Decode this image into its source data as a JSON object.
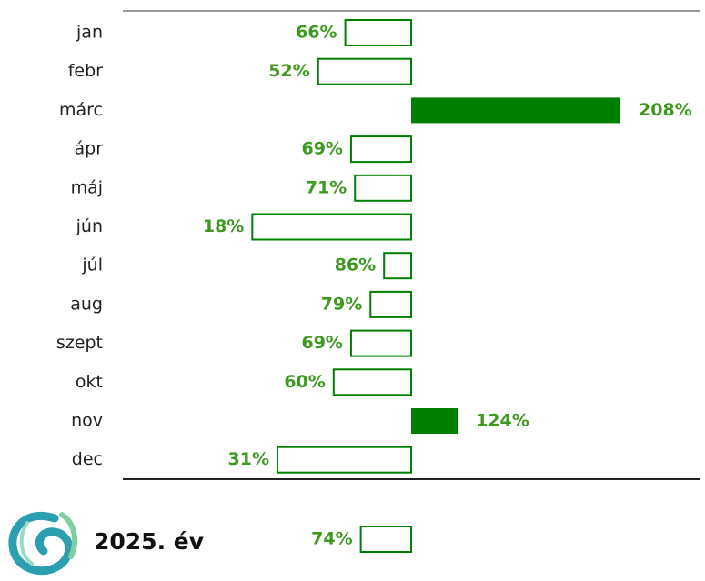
{
  "chart_data": {
    "type": "bar",
    "baseline": 100,
    "color": "#008000",
    "categories": [
      "jan",
      "febr",
      "márc",
      "ápr",
      "máj",
      "jún",
      "júl",
      "aug",
      "szept",
      "okt",
      "nov",
      "dec"
    ],
    "values": [
      66,
      52,
      208,
      69,
      71,
      18,
      86,
      79,
      69,
      60,
      124,
      31
    ],
    "value_labels": [
      "66%",
      "52%",
      "208%",
      "69%",
      "71%",
      "18%",
      "86%",
      "79%",
      "69%",
      "60%",
      "124%",
      "31%"
    ],
    "total": {
      "label": "2025. év",
      "value": 74,
      "value_label": "74%"
    }
  }
}
